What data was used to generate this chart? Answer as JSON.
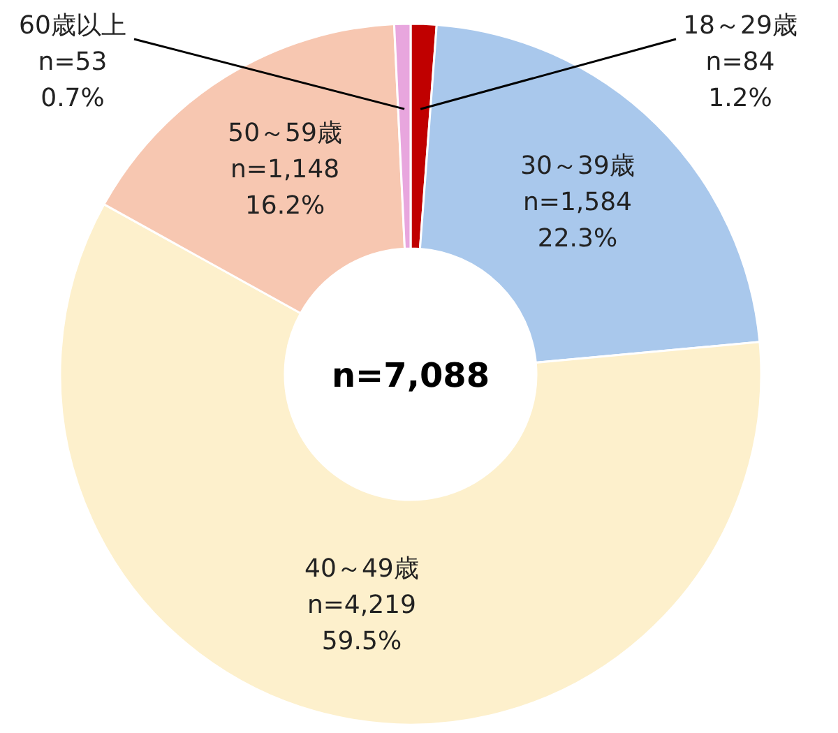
{
  "chart_data": {
    "type": "donut",
    "categories": [
      "18～29歳",
      "30～39歳",
      "40～49歳",
      "50～59歳",
      "60歳以上"
    ],
    "values": [
      84,
      1584,
      4219,
      1148,
      53
    ],
    "value_labels": [
      "n=84\n1.2%",
      "n=1,584\n22.3%",
      "n=4,219\n59.5%",
      "n=1,148\n16.2%",
      "n=53\n0.7%"
    ],
    "colors": [
      "#c00000",
      "#a9c8ec",
      "#fdf0cc",
      "#f7c7b1",
      "#e8a6de"
    ],
    "annotations": [
      "n=7,088"
    ],
    "legend": false
  }
}
